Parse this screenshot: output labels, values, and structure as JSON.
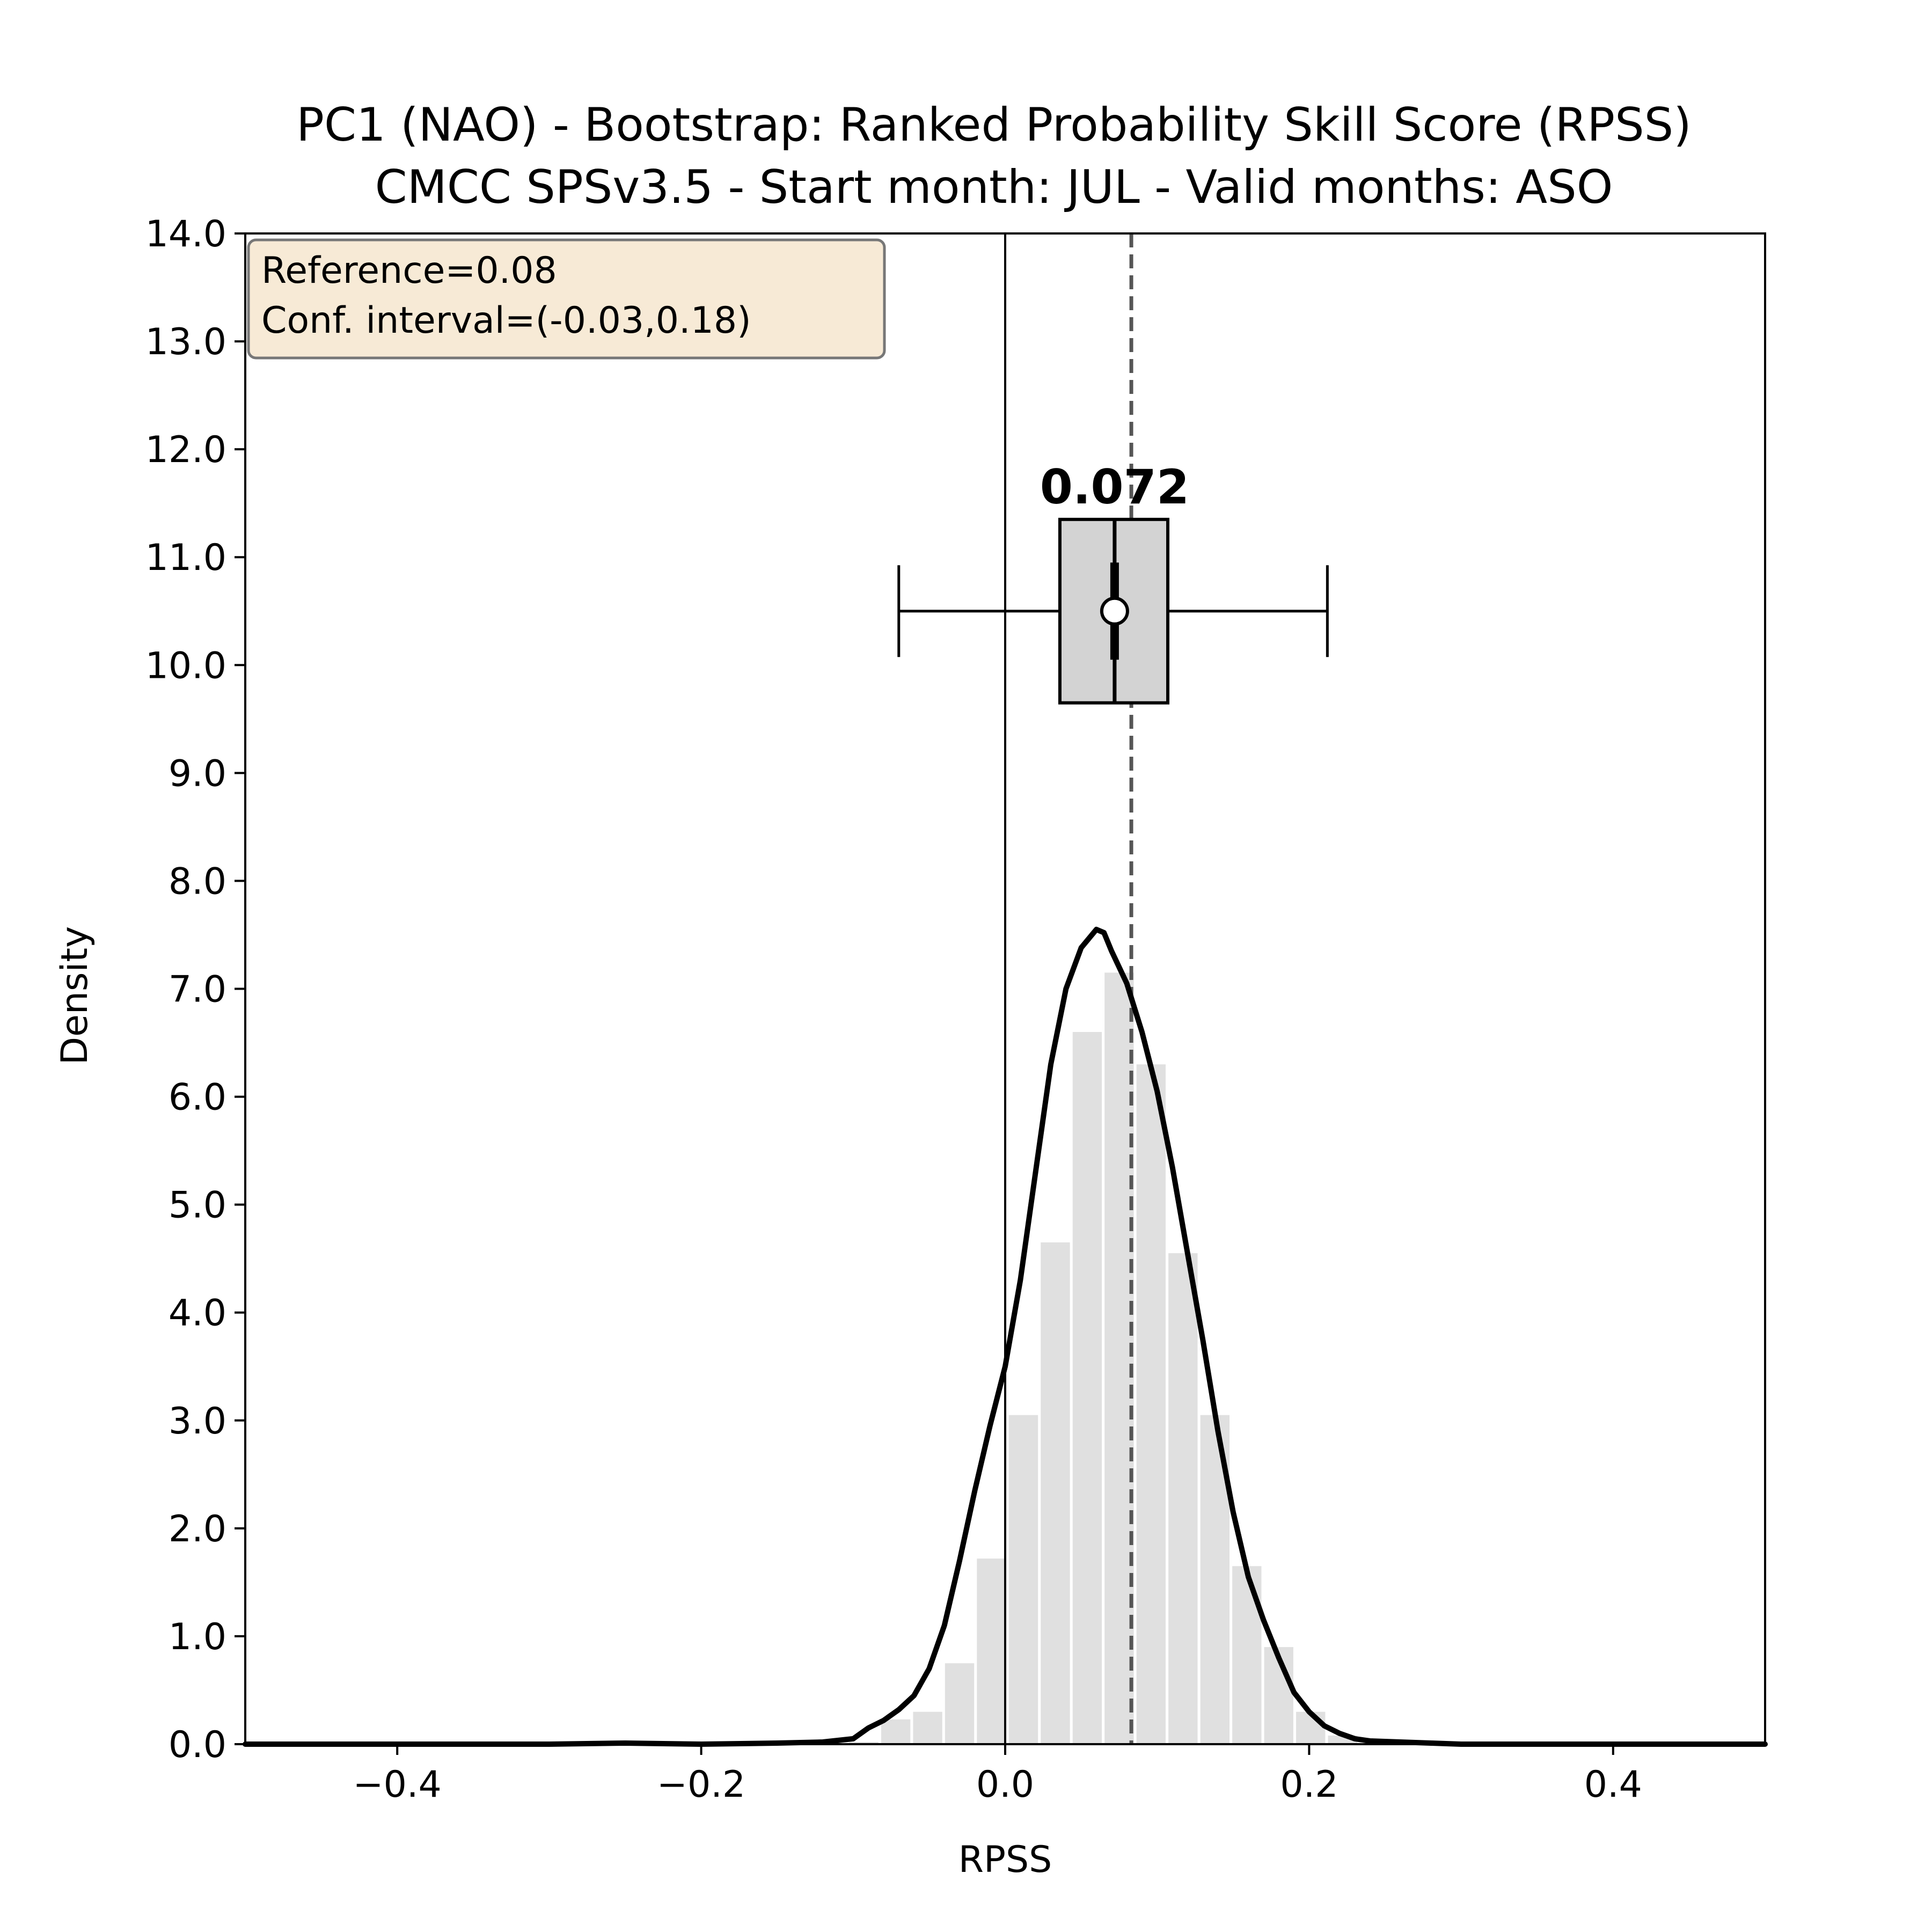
{
  "chart_data": {
    "type": "bar",
    "title": "PC1 (NAO) - Bootstrap: Ranked Probability Skill Score (RPSS)",
    "subtitle": "CMCC SPSv3.5 - Start month: JUL - Valid months: ASO",
    "xlabel": "RPSS",
    "ylabel": "Density",
    "xlim": [
      -0.5,
      0.5
    ],
    "ylim": [
      0,
      14
    ],
    "xticks": [
      -0.4,
      -0.2,
      0.0,
      0.2,
      0.4
    ],
    "xtick_labels": [
      "−0.4",
      "−0.2",
      "0.0",
      "0.2",
      "0.4"
    ],
    "yticks": [
      0,
      1,
      2,
      3,
      4,
      5,
      6,
      7,
      8,
      9,
      10,
      11,
      12,
      13,
      14
    ],
    "ytick_labels": [
      "0.0",
      "1.0",
      "2.0",
      "3.0",
      "4.0",
      "5.0",
      "6.0",
      "7.0",
      "8.0",
      "9.0",
      "10.0",
      "11.0",
      "12.0",
      "13.0",
      "14.0"
    ],
    "grid": false,
    "histogram": {
      "bin_width": 0.021,
      "bin_centers": [
        -0.093,
        -0.072,
        -0.051,
        -0.03,
        -0.009,
        0.012,
        0.033,
        0.054,
        0.075,
        0.096,
        0.117,
        0.138,
        0.159,
        0.18,
        0.201,
        0.222
      ],
      "densities": [
        0.02,
        0.23,
        0.3,
        0.75,
        1.72,
        3.05,
        4.65,
        6.6,
        7.15,
        6.3,
        4.55,
        3.05,
        1.65,
        0.9,
        0.3,
        0.08
      ],
      "color": "#e0e0e0"
    },
    "kde": {
      "x": [
        -0.5,
        -0.4,
        -0.3,
        -0.25,
        -0.2,
        -0.15,
        -0.12,
        -0.1,
        -0.09,
        -0.08,
        -0.07,
        -0.06,
        -0.05,
        -0.04,
        -0.03,
        -0.02,
        -0.01,
        0.0,
        0.01,
        0.02,
        0.03,
        0.04,
        0.05,
        0.06,
        0.065,
        0.07,
        0.08,
        0.09,
        0.1,
        0.11,
        0.12,
        0.13,
        0.14,
        0.15,
        0.16,
        0.17,
        0.18,
        0.19,
        0.2,
        0.21,
        0.22,
        0.23,
        0.24,
        0.26,
        0.28,
        0.3,
        0.35,
        0.4,
        0.5
      ],
      "y": [
        0.0,
        0.0,
        0.0,
        0.01,
        0.0,
        0.01,
        0.02,
        0.05,
        0.15,
        0.22,
        0.32,
        0.45,
        0.7,
        1.1,
        1.7,
        2.35,
        2.95,
        3.5,
        4.3,
        5.3,
        6.3,
        7.0,
        7.38,
        7.55,
        7.52,
        7.35,
        7.05,
        6.6,
        6.05,
        5.35,
        4.55,
        3.75,
        2.9,
        2.15,
        1.55,
        1.15,
        0.8,
        0.48,
        0.3,
        0.17,
        0.1,
        0.05,
        0.03,
        0.02,
        0.01,
        0.0,
        0.0,
        0.0,
        0.0
      ],
      "color": "#000000"
    },
    "reference_line": {
      "x": 0.083,
      "style": "dashed",
      "color": "#555555"
    },
    "zero_line": {
      "x": 0.0,
      "color": "#000000"
    },
    "boxplot": {
      "y": 10.5,
      "whisker_low": -0.07,
      "q1": 0.036,
      "median": 0.072,
      "q3": 0.107,
      "whisker_high": 0.212,
      "mean": 0.072,
      "fill": "#d3d3d3",
      "median_label": "0.072"
    },
    "info_box": {
      "lines": [
        "Reference=0.08",
        "Conf. interval=(-0.03,0.18)"
      ],
      "placement": "top-left",
      "background": "#f7ead6"
    }
  }
}
